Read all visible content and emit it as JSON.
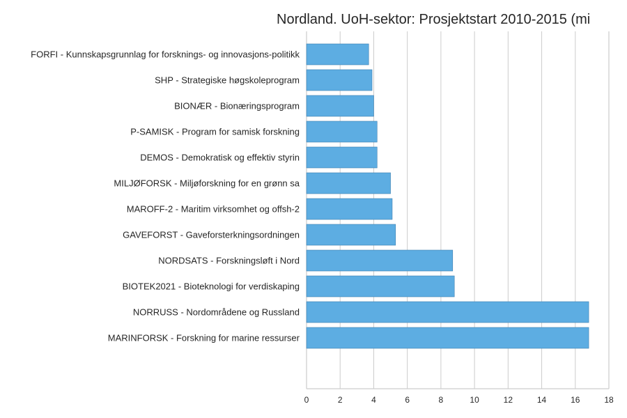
{
  "chart_data": {
    "type": "bar",
    "orientation": "horizontal",
    "title": "Nordland. UoH-sektor: Prosjektstart 2010-2015 (mi",
    "xlabel": "",
    "ylabel": "",
    "xlim": [
      0,
      18
    ],
    "xticks": [
      0,
      2,
      4,
      6,
      8,
      10,
      12,
      14,
      16,
      18
    ],
    "grid": true,
    "legend": "none",
    "bar_color": "#5dade2",
    "bar_edge_color": "#3d7fb0",
    "categories": [
      "FORFI - Kunnskapsgrunnlag for forsknings- og innovasjons-politikk",
      "SHP - Strategiske høgskoleprogram",
      "BIONÆR - Bionæringsprogram",
      "P-SAMISK - Program for samisk forskning",
      "DEMOS - Demokratisk og effektiv styrin",
      "MILJØFORSK - Miljøforskning for en grønn sa",
      "MAROFF-2 - Maritim virksomhet og offsh-2",
      "GAVEFORST - Gaveforsterkningsordningen",
      "NORDSATS - Forskningsløft i Nord",
      "BIOTEK2021 - Bioteknologi for verdiskaping",
      "NORRUSS - Nordområdene og Russland",
      "MARINFORSK - Forskning for marine ressurser"
    ],
    "values": [
      3.7,
      3.9,
      4.0,
      4.2,
      4.2,
      5.0,
      5.1,
      5.3,
      8.7,
      8.8,
      16.8,
      16.8
    ]
  }
}
